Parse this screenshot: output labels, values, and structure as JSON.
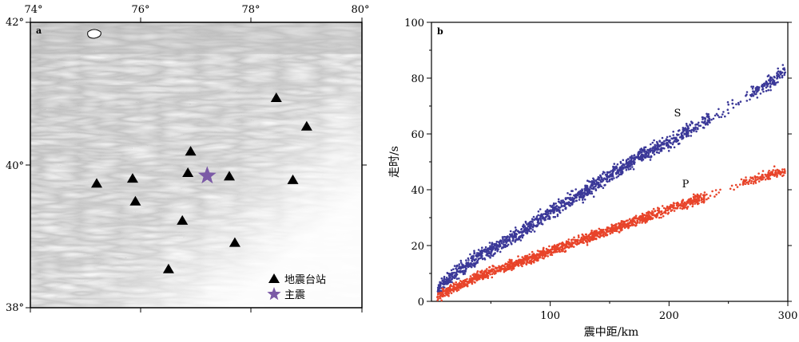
{
  "map": {
    "panel_label": "a",
    "lon_ticks": [
      "74°",
      "76°",
      "78°",
      "80°"
    ],
    "lat_ticks": [
      "42°",
      "40°",
      "38°"
    ],
    "lon_range": [
      74,
      80
    ],
    "lat_range": [
      38,
      42
    ],
    "legend": {
      "station_label": "地震台站",
      "mainshock_label": "主震"
    },
    "stations": [
      {
        "lon": 75.2,
        "lat": 39.75
      },
      {
        "lon": 75.85,
        "lat": 39.82
      },
      {
        "lon": 75.9,
        "lat": 39.5
      },
      {
        "lon": 76.85,
        "lat": 39.9
      },
      {
        "lon": 76.9,
        "lat": 40.2
      },
      {
        "lon": 77.6,
        "lat": 39.85
      },
      {
        "lon": 78.45,
        "lat": 40.95
      },
      {
        "lon": 78.75,
        "lat": 39.8
      },
      {
        "lon": 79.0,
        "lat": 40.55
      },
      {
        "lon": 76.75,
        "lat": 39.23
      },
      {
        "lon": 77.7,
        "lat": 38.92
      },
      {
        "lon": 76.5,
        "lat": 38.55
      }
    ],
    "mainshock": {
      "lon": 77.2,
      "lat": 39.85
    },
    "colors": {
      "station": "#000000",
      "mainshock": "#7b5aa6"
    }
  },
  "chart_data": {
    "type": "scatter",
    "panel_label": "b",
    "xlabel": "震中距/km",
    "ylabel": "走时/s",
    "xlim": [
      0,
      300
    ],
    "ylim": [
      0,
      100
    ],
    "xticks": [
      "100",
      "200",
      "300"
    ],
    "yticks": [
      "0",
      "20",
      "40",
      "60",
      "80",
      "100"
    ],
    "series": [
      {
        "name": "S",
        "color": "#3b3898",
        "x": [
          5,
          20,
          40,
          60,
          80,
          100,
          120,
          140,
          160,
          180,
          200,
          220,
          240,
          260,
          280,
          298
        ],
        "y": [
          4,
          10,
          16,
          21,
          26,
          32,
          37,
          42,
          48,
          53,
          57,
          62,
          67,
          72,
          77,
          83
        ]
      },
      {
        "name": "P",
        "color": "#e8442a",
        "x": [
          5,
          20,
          40,
          60,
          80,
          100,
          120,
          140,
          160,
          180,
          200,
          220,
          240,
          260,
          280,
          298
        ],
        "y": [
          2,
          5,
          9,
          12,
          15,
          18,
          21,
          24,
          27,
          30,
          33,
          36,
          39,
          42,
          45,
          47
        ]
      }
    ]
  }
}
